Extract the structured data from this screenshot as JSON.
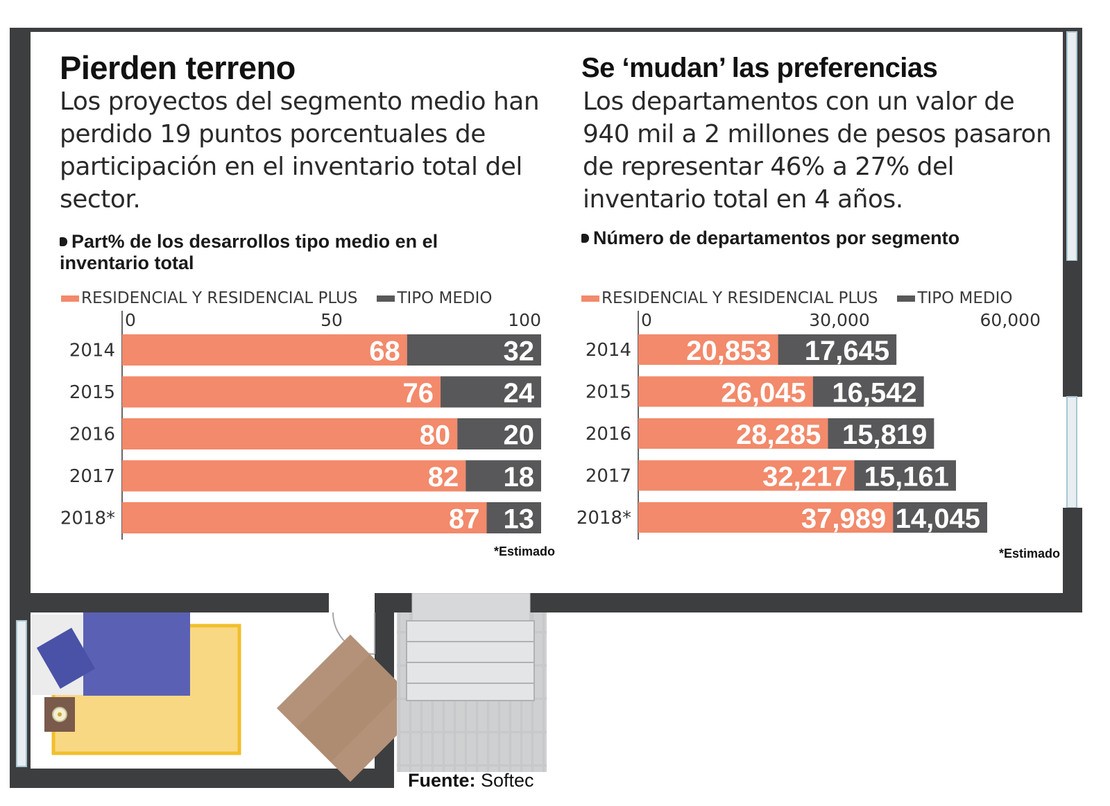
{
  "colors": {
    "residencial": "#f28a6b",
    "medio": "#58585a",
    "wall": "#3d3e40",
    "background": "#ffffff"
  },
  "left": {
    "title": "Pierden terreno",
    "description": "Los proyectos del segmento medio han perdido 19 puntos porcentuales de participación en el inventario total del sector.",
    "subtitle": "Part% de los desarrollos tipo medio en el inventario total",
    "legend": [
      "RESIDENCIAL Y RESIDENCIAL PLUS",
      "TIPO MEDIO"
    ],
    "footnote": "*Estimado"
  },
  "right": {
    "title": "Se ‘mudan’ las preferencias",
    "description": "Los departamentos con un valor de 940 mil a 2 millones de pesos pasaron de representar 46% a 27% del inventario total en 4 años.",
    "subtitle": "Número de departamentos por segmento",
    "legend": [
      "RESIDENCIAL Y RESIDENCIAL PLUS",
      "TIPO MEDIO"
    ],
    "footnote": "*Estimado"
  },
  "source": {
    "label": "Fuente:",
    "name": "Softec"
  },
  "chart_data": [
    {
      "type": "bar",
      "orientation": "horizontal",
      "stacked": true,
      "categories": [
        "2014",
        "2015",
        "2016",
        "2017",
        "2018*"
      ],
      "series": [
        {
          "name": "RESIDENCIAL Y RESIDENCIAL PLUS",
          "values": [
            68,
            76,
            80,
            82,
            87
          ],
          "labels": [
            "68",
            "76",
            "80",
            "82",
            "87"
          ]
        },
        {
          "name": "TIPO MEDIO",
          "values": [
            32,
            24,
            20,
            18,
            13
          ],
          "labels": [
            "32",
            "24",
            "20",
            "18",
            "13"
          ]
        }
      ],
      "xlim": [
        0,
        100
      ],
      "xticks": [
        0,
        50,
        100
      ],
      "xtick_labels": [
        "0",
        "50",
        "100"
      ],
      "legend_position": "top-left",
      "grid": false
    },
    {
      "type": "bar",
      "orientation": "horizontal",
      "stacked": true,
      "categories": [
        "2014",
        "2015",
        "2016",
        "2017",
        "2018*"
      ],
      "series": [
        {
          "name": "RESIDENCIAL Y RESIDENCIAL PLUS",
          "values": [
            20853,
            26045,
            28285,
            32217,
            37989
          ],
          "labels": [
            "20,853",
            "26,045",
            "28,285",
            "32,217",
            "37,989"
          ]
        },
        {
          "name": "TIPO MEDIO",
          "values": [
            17645,
            16542,
            15819,
            15161,
            14045
          ],
          "labels": [
            "17,645",
            "16,542",
            "15,819",
            "15,161",
            "14,045"
          ]
        }
      ],
      "xlim": [
        0,
        60000
      ],
      "xticks": [
        0,
        30000,
        60000
      ],
      "xtick_labels": [
        "0",
        "30,000",
        "60,000"
      ],
      "legend_position": "top-left",
      "grid": false
    }
  ]
}
